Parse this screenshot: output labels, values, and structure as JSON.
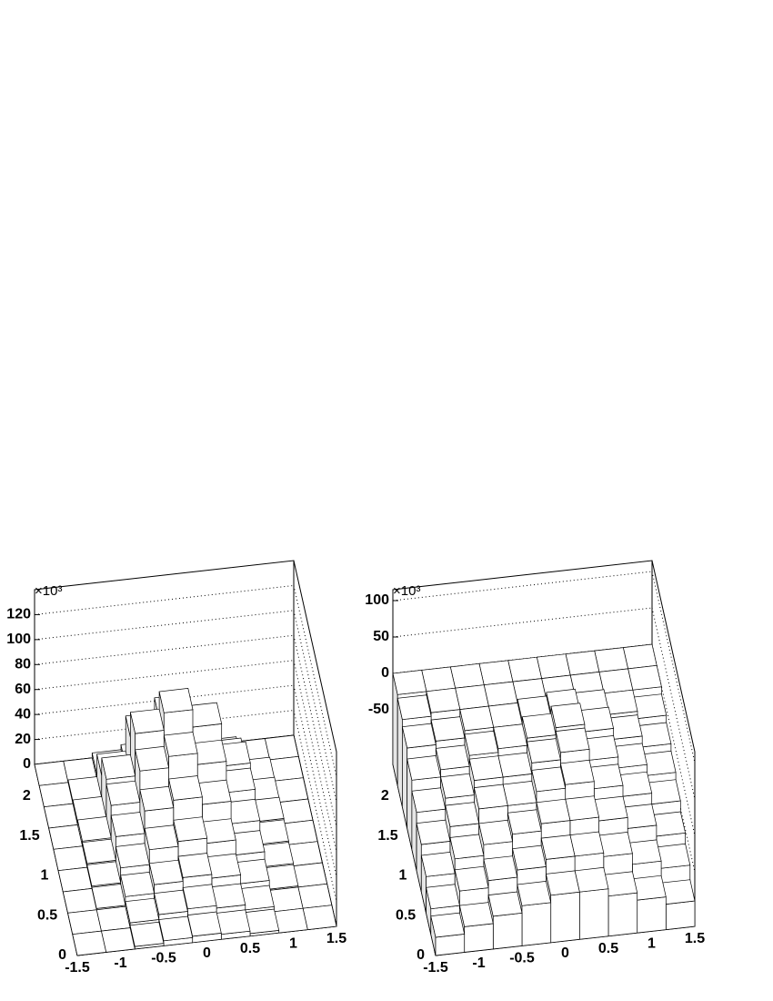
{
  "chart_data": [
    {
      "type": "lego",
      "z_exponent_label": "×10³",
      "xlim": [
        -1.5,
        1.5
      ],
      "ylim": [
        0,
        2.4
      ],
      "zlim": [
        0,
        140
      ],
      "xticks": [
        -1.5,
        -1,
        -0.5,
        0,
        0.5,
        1,
        1.5
      ],
      "yticks": [
        0,
        0.5,
        1,
        1.5,
        2
      ],
      "zticks": [
        0,
        20,
        40,
        60,
        80,
        100,
        120
      ],
      "grid": true,
      "z": [
        [
          0,
          0,
          2,
          4,
          5,
          4,
          2,
          0,
          0
        ],
        [
          0,
          0,
          4,
          8,
          10,
          8,
          4,
          0,
          0
        ],
        [
          0,
          1,
          8,
          15,
          18,
          15,
          8,
          1,
          0
        ],
        [
          0,
          2,
          14,
          26,
          30,
          26,
          14,
          2,
          0
        ],
        [
          0,
          3,
          22,
          40,
          46,
          40,
          22,
          3,
          0
        ],
        [
          0,
          4,
          30,
          55,
          64,
          55,
          30,
          4,
          0
        ],
        [
          0,
          3,
          34,
          68,
          82,
          68,
          34,
          3,
          0
        ],
        [
          0,
          2,
          20,
          48,
          60,
          48,
          20,
          2,
          0
        ],
        [
          0,
          0,
          4,
          8,
          10,
          8,
          4,
          0,
          0
        ]
      ]
    },
    {
      "type": "lego",
      "z_exponent_label": "×10³",
      "xlim": [
        -1.5,
        1.5
      ],
      "ylim": [
        0,
        2.4
      ],
      "zlim": [
        -125,
        115
      ],
      "xticks": [
        -1.5,
        -1,
        -0.5,
        0,
        0.5,
        1,
        1.5
      ],
      "yticks": [
        0,
        0.5,
        1,
        1.5,
        2
      ],
      "zticks": [
        -50,
        0,
        50,
        100
      ],
      "grid": true,
      "z": [
        [
          -100,
          -90,
          -80,
          -70,
          -60,
          -60,
          -70,
          -80,
          -90
        ],
        [
          -90,
          -70,
          -60,
          -50,
          -40,
          -40,
          -45,
          -60,
          -70
        ],
        [
          -75,
          -55,
          -40,
          -30,
          -20,
          -20,
          -25,
          -40,
          -55
        ],
        [
          -60,
          -40,
          -20,
          -20,
          -5,
          0,
          -10,
          -25,
          -40
        ],
        [
          -45,
          -30,
          -10,
          -10,
          5,
          15,
          0,
          -15,
          -30
        ],
        [
          -30,
          -20,
          -5,
          0,
          10,
          20,
          10,
          -5,
          -20
        ],
        [
          -15,
          -10,
          0,
          0,
          5,
          10,
          5,
          0,
          -10
        ],
        [
          -5,
          0,
          0,
          0,
          0,
          0,
          0,
          0,
          0
        ],
        [
          0,
          0,
          0,
          0,
          0,
          0,
          0,
          0,
          0
        ]
      ]
    }
  ]
}
